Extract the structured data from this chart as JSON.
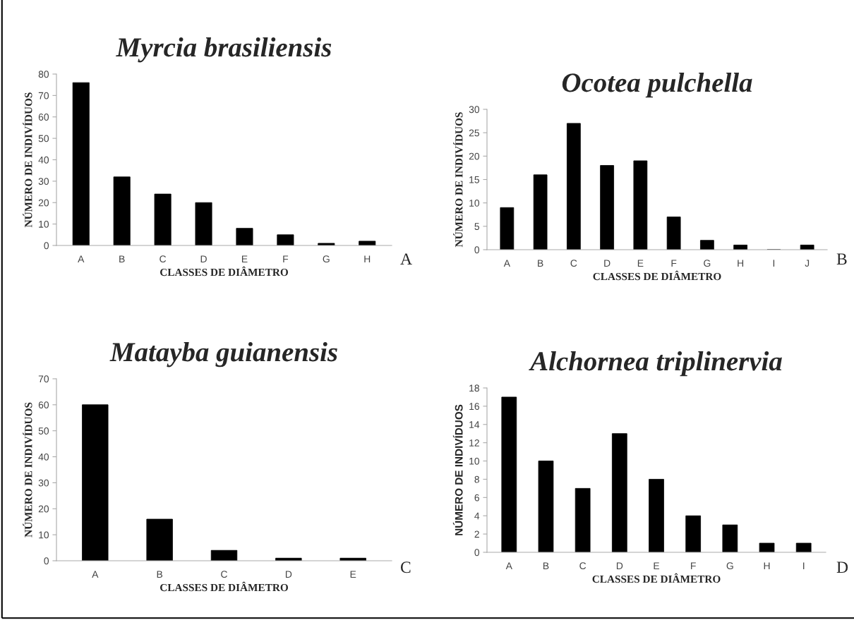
{
  "chart_data": [
    {
      "type": "bar",
      "title": "Myrcia brasiliensis",
      "xlabel": "CLASSES DE DIÂMETRO",
      "ylabel": "NÚMERO DE INDIVÍDUOS",
      "categories": [
        "A",
        "B",
        "C",
        "D",
        "E",
        "F",
        "G",
        "H"
      ],
      "values": [
        76,
        32,
        24,
        20,
        8,
        5,
        1,
        2
      ],
      "color": "#000000",
      "ylim": [
        0,
        80
      ],
      "yticks": [
        0,
        10,
        20,
        30,
        40,
        50,
        60,
        70,
        80
      ],
      "grid": false,
      "annotations": [
        "A"
      ]
    },
    {
      "type": "bar",
      "title": "Ocotea pulchella",
      "xlabel": "CLASSES DE DIÂMETRO",
      "ylabel": "NÚMERO DE INDIVÍDUOS",
      "categories": [
        "A",
        "B",
        "C",
        "D",
        "E",
        "F",
        "G",
        "H",
        "I",
        "J"
      ],
      "values": [
        9,
        16,
        27,
        18,
        19,
        7,
        2,
        1,
        0,
        1
      ],
      "color": "#000000",
      "ylim": [
        0,
        30
      ],
      "yticks": [
        0,
        5,
        10,
        15,
        20,
        25,
        30
      ],
      "grid": false,
      "annotations": [
        "B"
      ]
    },
    {
      "type": "bar",
      "title": "Matayba guianensis",
      "xlabel": "CLASSES DE DIÂMETRO",
      "ylabel": "NÚMERO DE INDIVÍDUOS",
      "categories": [
        "A",
        "B",
        "C",
        "D",
        "E"
      ],
      "values": [
        60,
        16,
        4,
        1,
        1
      ],
      "color": "#000000",
      "ylim": [
        0,
        70
      ],
      "yticks": [
        0,
        10,
        20,
        30,
        40,
        50,
        60,
        70
      ],
      "grid": false,
      "annotations": [
        "C"
      ]
    },
    {
      "type": "bar",
      "title": "Alchornea triplinervia",
      "xlabel": "CLASSES DE DIÂMETRO",
      "ylabel": "NÚMERO DE INDIVÍDUOS",
      "categories": [
        "A",
        "B",
        "C",
        "D",
        "E",
        "F",
        "G",
        "H",
        "I"
      ],
      "values": [
        17,
        10,
        7,
        13,
        8,
        4,
        3,
        1,
        1
      ],
      "color": "#000000",
      "ylim": [
        0,
        18
      ],
      "yticks": [
        0,
        2,
        4,
        6,
        8,
        10,
        12,
        14,
        16,
        18
      ],
      "grid": false,
      "annotations": [
        "D"
      ]
    }
  ]
}
